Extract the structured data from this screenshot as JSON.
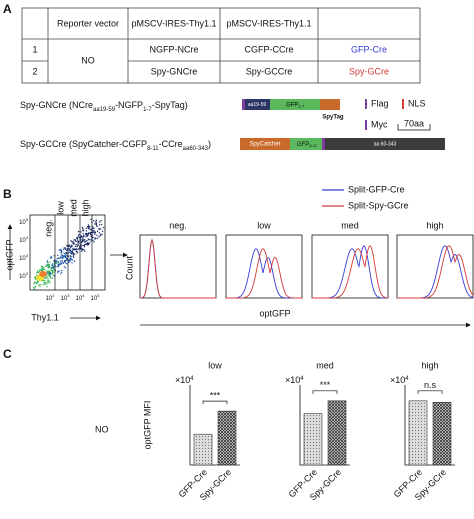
{
  "panel_labels": [
    "A",
    "B",
    "C"
  ],
  "table": {
    "header": [
      "Reporter vector",
      "pMSCV-IRES-Thy1.1",
      "pMSCV-IRES-Thy1.1"
    ],
    "reporter": "NO",
    "rows": [
      [
        "1",
        "NGFP-NCre",
        "CGFP-CCre",
        "GFP-Cre"
      ],
      [
        "2",
        "Spy-GNCre",
        "Spy-GCCre",
        "Spy-GCre"
      ]
    ]
  },
  "constructs": [
    {
      "name": "Spy-GNCre",
      "formula": [
        "(NCre",
        "aa19-59",
        "-NGFP",
        "1-7",
        "-SpyTag)"
      ],
      "domains": [
        "aa19-59",
        "GFP",
        "1-7",
        "SpyTag"
      ]
    },
    {
      "name": "Spy-GCCre",
      "formula": [
        "(SpyCatcher-CGFP",
        "8-11",
        "-CCre",
        "aa60-343",
        ")"
      ],
      "domains": [
        "SpyCatcher",
        "GFP",
        "8-11",
        "aa 60-343"
      ]
    }
  ],
  "key": {
    "flag": "Flag",
    "nls": "NLS",
    "myc": "Myc",
    "scale": "70aa"
  },
  "flow": {
    "ylabel": "optGFP",
    "xlabel": "Thy1.1",
    "gates": [
      "neg.",
      "low",
      "med",
      "high"
    ],
    "tick_base": "10",
    "yticks_exp": [
      "5",
      "4",
      "3",
      "2"
    ],
    "xticks_exp": [
      "2",
      "3",
      "4",
      "5"
    ]
  },
  "histograms": {
    "ylabel": "Count",
    "xlabel": "optGFP",
    "panels": [
      "neg.",
      "low",
      "med",
      "high"
    ],
    "legend": [
      {
        "name": "Split-GFP-Cre",
        "color": "#3a3ad6"
      },
      {
        "name": "Split-Spy-GCre",
        "color": "#d43a3a"
      }
    ]
  },
  "chart_data": {
    "type": "bar",
    "row_label": "NO",
    "ylabel": "optGFP MFI",
    "categories": [
      "GFP-Cre",
      "Spy-GCre"
    ],
    "groups": [
      {
        "title": "low",
        "scale": [
          "×10",
          "4"
        ],
        "values": [
          0.12,
          0.21
        ],
        "ylim": [
          0,
          0.3
        ],
        "significance": "***"
      },
      {
        "title": "med",
        "scale": [
          "×10",
          "4"
        ],
        "values": [
          0.4,
          0.5
        ],
        "ylim": [
          0,
          0.6
        ],
        "significance": "***"
      },
      {
        "title": "high",
        "scale": [
          "×10",
          "4"
        ],
        "values": [
          1.25,
          1.22
        ],
        "ylim": [
          0,
          1.5
        ],
        "significance": "n.s"
      }
    ]
  }
}
